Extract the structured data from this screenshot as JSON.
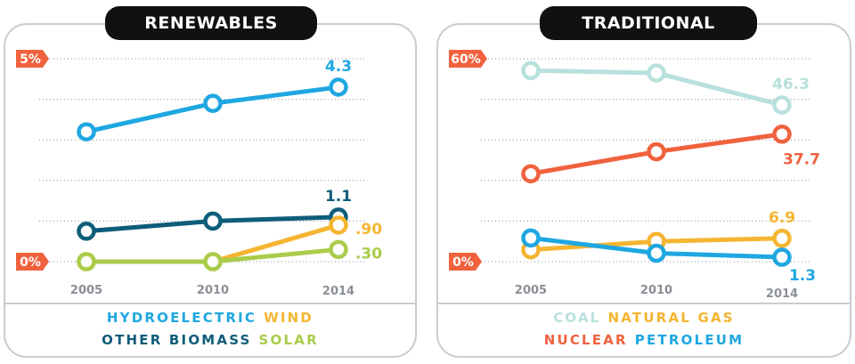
{
  "panels": {
    "left": {
      "title": "RENEWABLES",
      "legend_row1": [
        {
          "label": "HYDROELECTRIC",
          "color": "#1ea7e1"
        },
        {
          "label": "WIND",
          "color": "#f5b531"
        }
      ],
      "legend_row2": [
        {
          "label": "OTHER BIOMASS",
          "color": "#0e5d7a"
        },
        {
          "label": "SOLAR",
          "color": "#a9cc4a"
        }
      ]
    },
    "right": {
      "title": "TRADITIONAL",
      "legend_row1": [
        {
          "label": "COAL",
          "color": "#b8e0dc"
        },
        {
          "label": "NATURAL GAS",
          "color": "#f5b531"
        }
      ],
      "legend_row2": [
        {
          "label": "NUCLEAR",
          "color": "#f0623e"
        },
        {
          "label": "PETROLEUM",
          "color": "#1ea7e1"
        }
      ]
    }
  },
  "chart_data": [
    {
      "type": "line",
      "title": "RENEWABLES",
      "x": [
        "2005",
        "2010",
        "2014"
      ],
      "ylim": [
        0,
        5
      ],
      "y_ticks": [
        "0%",
        "5%"
      ],
      "grid": true,
      "series": [
        {
          "name": "HYDROELECTRIC",
          "color": "#1ea7e1",
          "values": [
            3.2,
            3.9,
            4.3
          ],
          "end_label": "4.3"
        },
        {
          "name": "OTHER BIOMASS",
          "color": "#0e5d7a",
          "values": [
            0.75,
            1.0,
            1.1
          ],
          "end_label": "1.1"
        },
        {
          "name": "WIND",
          "color": "#f5b531",
          "values": [
            0.0,
            0.0,
            0.9
          ],
          "end_label": ".90"
        },
        {
          "name": "SOLAR",
          "color": "#a9cc4a",
          "values": [
            0.0,
            0.0,
            0.3
          ],
          "end_label": ".30"
        }
      ]
    },
    {
      "type": "line",
      "title": "TRADITIONAL",
      "x": [
        "2005",
        "2010",
        "2014"
      ],
      "ylim": [
        0,
        60
      ],
      "y_ticks": [
        "0%",
        "60%"
      ],
      "grid": true,
      "series": [
        {
          "name": "COAL",
          "color": "#b8e0dc",
          "values": [
            56.5,
            55.8,
            46.3
          ],
          "end_label": "46.3"
        },
        {
          "name": "NUCLEAR",
          "color": "#f0623e",
          "values": [
            26.0,
            32.5,
            37.7
          ],
          "end_label": "37.7"
        },
        {
          "name": "NATURAL GAS",
          "color": "#f5b531",
          "values": [
            3.5,
            6.0,
            6.9
          ],
          "end_label": "6.9"
        },
        {
          "name": "PETROLEUM",
          "color": "#1ea7e1",
          "values": [
            7.0,
            2.5,
            1.3
          ],
          "end_label": "1.3"
        }
      ]
    }
  ]
}
